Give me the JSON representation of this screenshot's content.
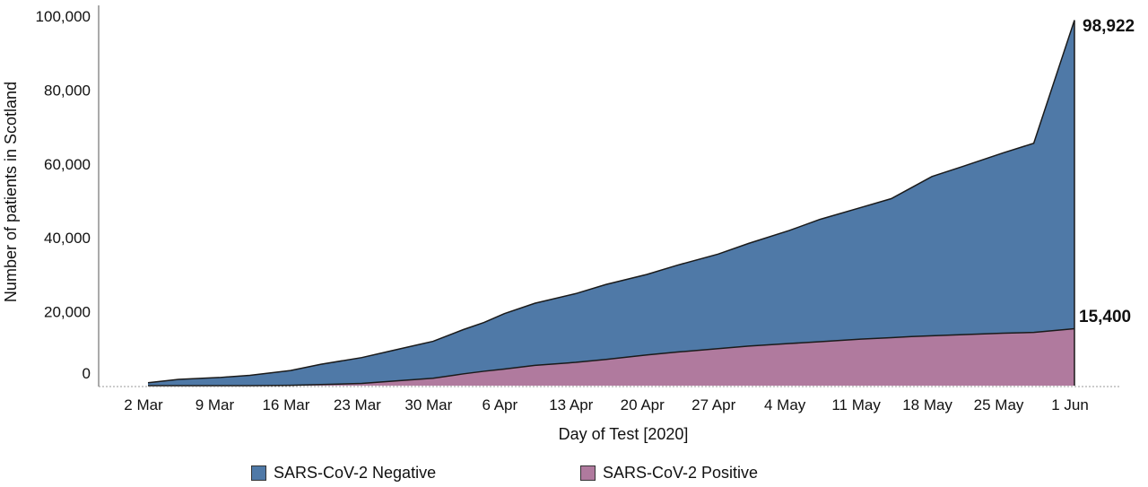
{
  "chart_data": {
    "type": "area",
    "stacked": true,
    "xlabel": "Day of Test [2020]",
    "ylabel": "Number of patients in Scotland",
    "ylim": [
      0,
      100000
    ],
    "yticks": [
      0,
      20000,
      40000,
      60000,
      80000,
      100000
    ],
    "ytick_labels": [
      "0",
      "20,000",
      "40,000",
      "60,000",
      "80,000",
      "100,000"
    ],
    "x": [
      "2020-03-02",
      "2020-03-05",
      "2020-03-09",
      "2020-03-12",
      "2020-03-16",
      "2020-03-19",
      "2020-03-23",
      "2020-03-26",
      "2020-03-30",
      "2020-04-02",
      "2020-04-04",
      "2020-04-06",
      "2020-04-09",
      "2020-04-13",
      "2020-04-16",
      "2020-04-20",
      "2020-04-23",
      "2020-04-27",
      "2020-04-30",
      "2020-05-04",
      "2020-05-07",
      "2020-05-11",
      "2020-05-14",
      "2020-05-16",
      "2020-05-18",
      "2020-05-21",
      "2020-05-25",
      "2020-05-28",
      "2020-06-01"
    ],
    "xticks": [
      "2020-03-02",
      "2020-03-09",
      "2020-03-16",
      "2020-03-23",
      "2020-03-30",
      "2020-04-06",
      "2020-04-13",
      "2020-04-20",
      "2020-04-27",
      "2020-05-04",
      "2020-05-11",
      "2020-05-18",
      "2020-05-25",
      "2020-06-01"
    ],
    "xtick_labels": [
      "2 Mar",
      "9 Mar",
      "16 Mar",
      "23 Mar",
      "30 Mar",
      "6 Apr",
      "13 Apr",
      "20 Apr",
      "27 Apr",
      "4 May",
      "11 May",
      "18 May",
      "25 May",
      "1 Jun"
    ],
    "series": [
      {
        "name": "SARS-CoV-2 Positive",
        "color": "#b07a9e",
        "values": [
          0,
          0,
          0,
          0,
          100,
          300,
          600,
          1200,
          2000,
          3200,
          3900,
          4500,
          5500,
          6300,
          7100,
          8300,
          9100,
          10000,
          10700,
          11400,
          11900,
          12600,
          13000,
          13300,
          13500,
          13800,
          14200,
          14400,
          15400
        ]
      },
      {
        "name": "SARS-CoV-2 Negative",
        "color": "#4f79a7",
        "values": [
          800,
          1700,
          2200,
          2800,
          4000,
          5500,
          7000,
          8300,
          10000,
          12000,
          13200,
          15000,
          16800,
          18600,
          20300,
          21800,
          23500,
          25600,
          27800,
          30600,
          33100,
          35600,
          37600,
          40300,
          43100,
          45500,
          48800,
          51200,
          83522
        ]
      }
    ],
    "cumulative_totals": [
      800,
      1700,
      2200,
      2800,
      4100,
      5800,
      7600,
      9500,
      12000,
      15200,
      17100,
      19500,
      22300,
      24900,
      27400,
      30100,
      32600,
      35600,
      38500,
      42000,
      45000,
      48200,
      50600,
      53600,
      56600,
      59300,
      63000,
      65600,
      98922
    ],
    "end_labels": {
      "total": "98,922",
      "positive": "15,400"
    },
    "legend_position": "bottom",
    "grid": false
  }
}
